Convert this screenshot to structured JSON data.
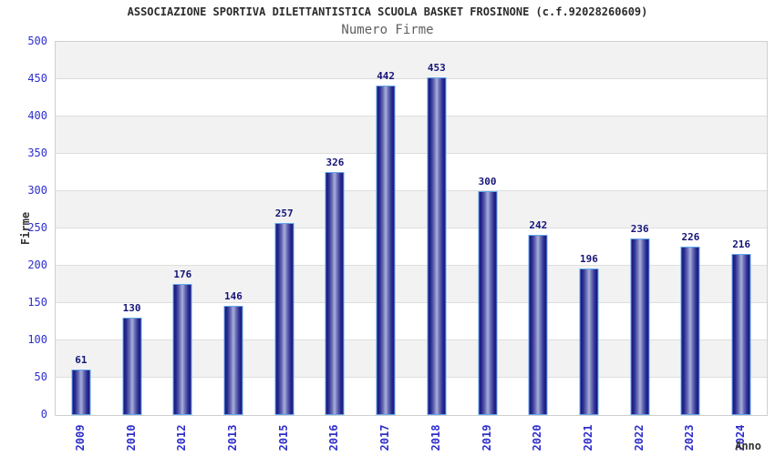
{
  "chart_data": {
    "type": "bar",
    "title": "ASSOCIAZIONE SPORTIVA DILETTANTISTICA SCUOLA BASKET FROSINONE (c.f.92028260609)",
    "subtitle": "Numero Firme",
    "xlabel": "Anno",
    "ylabel": "Firme",
    "categories": [
      "2009",
      "2010",
      "2012",
      "2013",
      "2015",
      "2016",
      "2017",
      "2018",
      "2019",
      "2020",
      "2021",
      "2022",
      "2023",
      "2024"
    ],
    "values": [
      61,
      130,
      176,
      146,
      257,
      326,
      442,
      453,
      300,
      242,
      196,
      236,
      226,
      216
    ],
    "ylim": [
      0,
      500
    ],
    "yticks": [
      0,
      50,
      100,
      150,
      200,
      250,
      300,
      350,
      400,
      450,
      500
    ],
    "grid": "horizontal-bands-every-50",
    "legend": "none",
    "colors": {
      "tick_label_blue": "#2e2ecc",
      "value_label_navy": "#15157a",
      "bar_gradient_dark": "#17177c",
      "bar_gradient_mid": "#6a6fb5",
      "bar_gradient_light": "#a2a8d6",
      "bar_border_light_blue": "#62a8ec",
      "band_gray": "#f2f2f2",
      "band_white": "#ffffff",
      "gridline": "#dedede",
      "plot_border": "#cfcfcf",
      "title_color": "#2b2b2b",
      "subtitle_color": "#5f5f5f",
      "axis_title_color": "#333333"
    }
  }
}
